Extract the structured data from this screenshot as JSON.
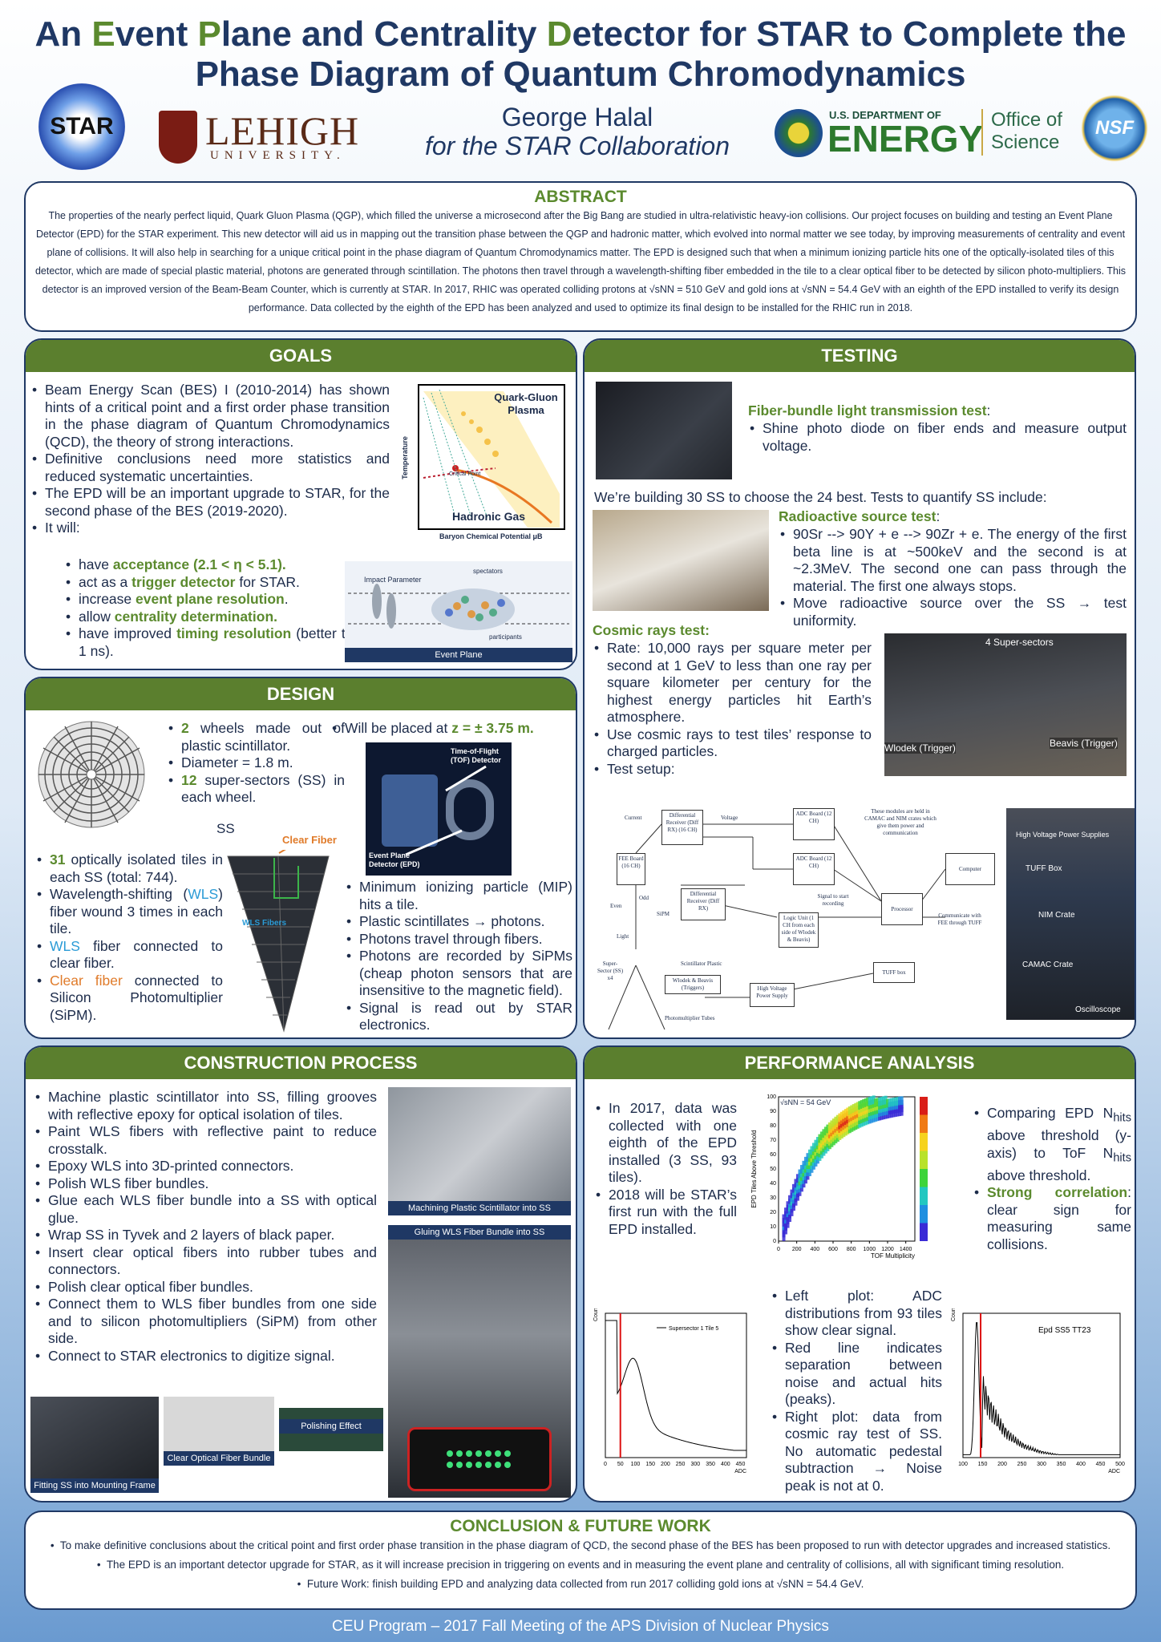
{
  "header": {
    "title_line1_a": "An ",
    "title_E": "E",
    "title_line1_b": "vent ",
    "title_P": "P",
    "title_line1_c": "lane and Centrality ",
    "title_D": "D",
    "title_line1_d": "etector for STAR to Complete the",
    "title_line2": "Phase Diagram of Quantum Chromodynamics",
    "author": "George Halal",
    "collab": "for the STAR Collaboration",
    "star_logo": "STAR",
    "lehigh": "LEHIGH",
    "lehigh_sub": "UNIVERSITY.",
    "doe_small": "U.S. DEPARTMENT OF",
    "doe_big": "ENERGY",
    "office": "Office of",
    "science": "Science",
    "nsf": "NSF"
  },
  "abstract": {
    "title": "ABSTRACT",
    "text": "The properties of the nearly perfect liquid, Quark Gluon Plasma (QGP), which filled the universe a microsecond after the Big Bang are studied in ultra-relativistic heavy-ion collisions. Our project focuses on building and testing an Event Plane Detector (EPD) for the STAR experiment. This new detector will aid us in mapping out the transition phase between the QGP and hadronic matter, which evolved into normal matter we see today, by improving measurements of centrality and event plane of collisions. It will also help in searching for a unique critical point in the phase diagram of Quantum Chromodynamics matter. The EPD is designed such that when a minimum ionizing particle hits one of the optically-isolated tiles of this detector, which are made of special plastic material, photons are generated through scintillation. The photons then travel through a wavelength-shifting fiber embedded in the tile to a clear optical fiber to be detected by silicon photo-multipliers. This detector is an improved version of the Beam-Beam Counter, which is currently at STAR. In 2017, RHIC was operated colliding protons at √sNN = 510 GeV and gold ions at √sNN = 54.4 GeV with an eighth of the EPD installed to verify its design performance. Data collected by the eighth of the EPD has been analyzed and used to optimize its final design to be installed for the RHIC run in 2018."
  },
  "goals": {
    "title": "GOALS",
    "b1": "Beam Energy Scan (BES) I (2010-2014) has shown hints of a critical point and a first order phase transition in the phase diagram of Quantum Chromodynamics (QCD), the theory of strong interactions.",
    "b2": "Definitive conclusions need more statistics and reduced systematic uncertainties.",
    "b3": "The EPD will be an important upgrade to STAR, for the second phase of the BES (2019-2020).",
    "b4": "It will:",
    "s1a": "have ",
    "s1b": "acceptance (2.1 < η < 5.1).",
    "s2a": "act as a ",
    "s2b": "trigger detector",
    "s2c": " for STAR.",
    "s3a": "increase ",
    "s3b": "event plane resolution",
    "s3c": ".",
    "s4a": "allow ",
    "s4b": "centrality determination.",
    "s5a": "have improved ",
    "s5b": "timing resolution",
    "s5c": " (better than 1 ns).",
    "fig_qgp": "Quark-Gluon Plasma",
    "fig_hadronic": "Hadronic Gas",
    "fig_temp": "Temperature",
    "fig_baryon": "Baryon Chemical Potential μB",
    "fig_cp": "Critical Point",
    "fig_impact": "Impact Parameter",
    "fig_spect": "spectators",
    "fig_part": "participants",
    "fig_ep": "Event Plane"
  },
  "design": {
    "title": "DESIGN",
    "w1a": "2",
    "w1b": " wheels made out of plastic scintillator.",
    "w2": "Diameter = 1.8 m.",
    "w3a": "12",
    "w3b": " super-sectors (SS) in each wheel.",
    "placed_a": "Will be placed at ",
    "placed_b": "z = ± 3.75 m.",
    "ss": "SS",
    "clear_fiber": "Clear Fiber",
    "wls_fibers": "WLS Fibers",
    "tof": "Time-of-Flight (TOF) Detector",
    "epd": "Event Plane Detector (EPD)",
    "t1a": "31",
    "t1b": " optically isolated tiles in each SS (total: 744).",
    "t2a": "Wavelength-shifting (",
    "t2b": "WLS",
    "t2c": ") fiber wound 3 times in each tile.",
    "t3a": "WLS",
    "t3b": " fiber connected to clear fiber.",
    "t4a": "Clear fiber",
    "t4b": " connected to Silicon Photomultiplier (SiPM).",
    "m1": "Minimum ionizing particle (MIP) hits a tile.",
    "m2": "Plastic scintillates → photons.",
    "m3": "Photons travel through fibers.",
    "m4": "Photons are recorded by SiPMs (cheap photon sensors that are insensitive to the magnetic field).",
    "m5": "Signal is read out by STAR electronics."
  },
  "testing": {
    "title": "TESTING",
    "fiber_title": "Fiber-bundle light transmission test",
    "fiber_b": "Shine photo diode on fiber ends and measure output voltage.",
    "intro": "We’re building 30 SS to choose the 24 best. Tests to quantify SS include:",
    "rad_title": "Radioactive source test",
    "rad_b1": "90Sr --> 90Y + e --> 90Zr + e.  The energy of the first beta line is at ~500keV and the second is at ~2.3MeV.  The second one can pass through the material. The first one always stops.",
    "rad_b2": "Move radioactive source over the SS → test uniformity.",
    "cos_title": "Cosmic rays test",
    "cos_b1": "Rate: 10,000 rays per square meter per second at 1 GeV to less than one ray per square kilometer per century for the highest energy particles hit Earth’s atmosphere.",
    "cos_b2": "Use cosmic rays to test tiles’ response to charged particles.",
    "cos_b3": "Test setup:",
    "ph_4ss": "4 Super-sectors",
    "ph_wlodek": "Wlodek (Trigger)",
    "ph_beavis": "Beavis (Trigger)",
    "ph_hv": "High Voltage Power Supplies",
    "ph_tuff": "TUFF Box",
    "ph_nim": "NIM Crate",
    "ph_camac": "CAMAC Crate",
    "ph_osc": "Oscilloscope",
    "d_diffrx1": "Differential Receiver (Diff RX) (16 CH)",
    "d_adc1": "ADC Board (12 CH)",
    "d_adc2": "ADC Board (12 CH)",
    "d_note": "These modules are held in CAMAC and NIM crates which give them power and communication",
    "d_computer": "Computer",
    "d_fee": "FEE Board (16 CH)",
    "d_diffrx2": "Differential Receiver (Diff RX)",
    "d_signal": "Signal to start recording",
    "d_logic": "Logic Unit (1 CH from each side of Wlodek & Beavis)",
    "d_processor": "Processor",
    "d_comm": "Communicate with FEE through TUFF",
    "d_ss": "Super-Sector (SS) x4",
    "d_scint": "Scintillator Plastic",
    "d_wb": "Wlodek & Beavis (Triggers)",
    "d_hv": "High Voltage Power Supply",
    "d_tuff": "TUFF box",
    "d_pmt": "Photomultiplier Tubes",
    "d_current": "Current",
    "d_voltage": "Voltage",
    "d_sipm": "SiPM",
    "d_light": "Light",
    "d_even": "Even",
    "d_odd": "Odd"
  },
  "construction": {
    "title": "CONSTRUCTION PROCESS",
    "items": [
      "Machine plastic scintillator into SS, filling grooves with reflective epoxy for optical isolation of tiles.",
      "Paint WLS fibers with reflective paint to reduce crosstalk.",
      "Epoxy WLS into 3D-printed connectors.",
      "Polish WLS fiber bundles.",
      "Glue each WLS fiber bundle into a SS with optical glue.",
      "Wrap SS in Tyvek and 2 layers of black paper.",
      "Insert clear optical fibers into rubber tubes and connectors.",
      "Polish clear optical fiber bundles.",
      "Connect them to WLS fiber bundles from one side and to silicon photomultipliers (SiPM) from other side.",
      "Connect to STAR electronics to digitize signal."
    ],
    "cap1": "Machining Plastic Scintillator into SS",
    "cap2": "Gluing WLS Fiber Bundle into SS",
    "cap3": "Fitting SS into Mounting Frame",
    "cap4": "Clear Optical Fiber Bundle",
    "cap5": "Polishing Effect"
  },
  "performance": {
    "title": "PERFORMANCE ANALYSIS",
    "l1": "In 2017, data was collected with one eighth of the EPD installed (3 SS, 93 tiles).",
    "l2": "2018 will be STAR’s first run with the full EPD installed.",
    "r1a": "Comparing EPD N",
    "r1sub": "hits",
    "r1b": " above threshold (y-axis) to ToF N",
    "r1c": " above threshold.",
    "r2a": "Strong correlation",
    "r2b": ": clear sign for measuring same collisions.",
    "c1": "Left plot: ADC distributions from 93 tiles show clear signal.",
    "c2": "Red line indicates separation between noise and actual hits (peaks).",
    "c3": "Right plot: data from cosmic ray test of SS. No automatic pedestal subtraction → Noise peak is not at 0.",
    "h_ylabel": "EPD Tiles Above Threshold",
    "h_xlabel": "TOF Multiplicity",
    "h_note": "√sNN = 54 GeV",
    "p1_legend": "Supersector 1 Tile 5",
    "p1_ylabel": "Counts",
    "p1_xlabel": "ADC",
    "p2_title": "Epd SS5 TT23",
    "p2_ylabel": "Counts",
    "p2_xlabel": "ADC"
  },
  "conclusion": {
    "title": "CONCLUSION & FUTURE WORK",
    "b1": "To make definitive conclusions about the critical point and first order phase transition in the phase diagram of QCD, the second phase of the BES has been proposed to run with detector upgrades and increased statistics.",
    "b2": "The EPD is an important detector upgrade for STAR, as it will increase precision in triggering on events and in measuring the event plane and centrality of collisions, all with significant timing resolution.",
    "b3": "Future Work: finish building EPD and analyzing data collected from run 2017 colliding gold ions at √sNN = 54.4 GeV."
  },
  "footer": "CEU Program – 2017 Fall Meeting of the APS Division of Nuclear Physics",
  "chart_data": [
    {
      "type": "heatmap",
      "xlabel": "TOF Multiplicity",
      "ylabel": "EPD Tiles Above Threshold",
      "xlim": [
        0,
        1500
      ],
      "ylim": [
        0,
        100
      ],
      "x_ticks": [
        0,
        200,
        400,
        600,
        800,
        1000,
        1200,
        1400
      ],
      "y_ticks": [
        0,
        10,
        20,
        30,
        40,
        50,
        60,
        70,
        80,
        90,
        100
      ]
    },
    {
      "type": "line",
      "legend": "Supersector 1 Tile 5",
      "xlabel": "ADC",
      "ylabel": "Counts",
      "x_ticks": [
        0,
        50,
        100,
        150,
        200,
        250,
        300,
        350,
        400,
        450
      ],
      "xlim": [
        0,
        470
      ],
      "cut": 50
    },
    {
      "type": "line",
      "title": "Epd SS5 TT23",
      "xlabel": "ADC",
      "ylabel": "Counts",
      "x_ticks": [
        100,
        150,
        200,
        250,
        300,
        350,
        400,
        450,
        500
      ],
      "xlim": [
        100,
        500
      ],
      "cut": 145
    }
  ],
  "colors": {
    "navy": "#1f3864",
    "green": "#5b7f2e",
    "wls_blue": "#2b9bd6",
    "clear_orange": "#e07b2a"
  }
}
